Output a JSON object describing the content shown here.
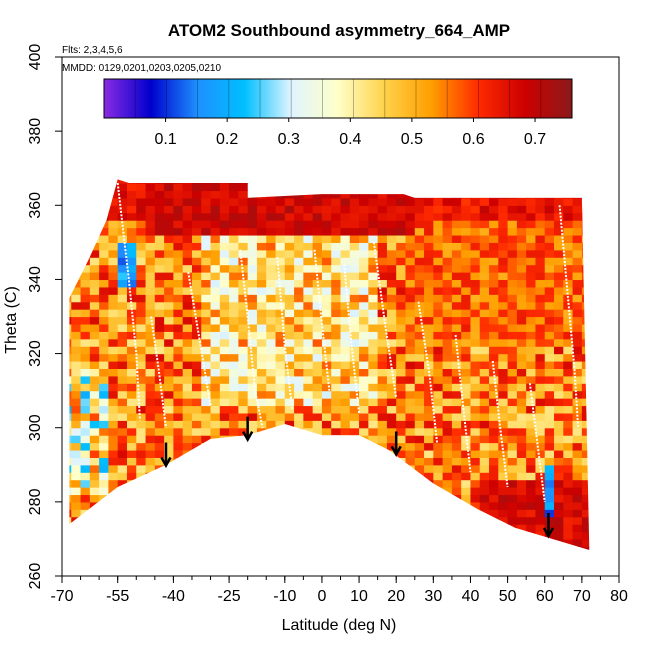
{
  "chart_data": {
    "type": "heatmap",
    "title": "ATOM2 Southbound asymmetry_664_AMP",
    "flights_label": "Flts: 2,3,4,5,6",
    "dates_label": "MMDD: 0129,0201,0203,0205,0210",
    "xlabel": "Latitude (deg N)",
    "ylabel": "Theta (C)",
    "xlim": [
      -70,
      80
    ],
    "ylim": [
      260,
      400
    ],
    "x_ticks": [
      -70,
      -55,
      -40,
      -25,
      -10,
      0,
      10,
      20,
      30,
      40,
      50,
      60,
      70,
      80
    ],
    "x_tick_labels": [
      "-70",
      "-55",
      "-40",
      "-25",
      "-10",
      "0",
      "10",
      "20",
      "30",
      "40",
      "50",
      "60",
      "70",
      "80"
    ],
    "y_ticks": [
      260,
      280,
      300,
      320,
      340,
      360,
      380,
      400
    ],
    "y_tick_labels": [
      "260",
      "280",
      "300",
      "320",
      "340",
      "360",
      "380",
      "400"
    ],
    "colorbar": {
      "range": [
        0.0,
        0.76
      ],
      "ticks": [
        0.1,
        0.2,
        0.3,
        0.4,
        0.5,
        0.6,
        0.7
      ],
      "tick_labels": [
        "0.1",
        "0.2",
        "0.3",
        "0.4",
        "0.5",
        "0.6",
        "0.7"
      ],
      "colors": [
        "#8a2be2",
        "#0000cd",
        "#1e90ff",
        "#00bfff",
        "#e0f4ff",
        "#ffffc8",
        "#ffd24a",
        "#ff9e00",
        "#ff2a00",
        "#cc0000",
        "#8b1a1a"
      ]
    },
    "lower_boundary": [
      [
        -68,
        274
      ],
      [
        -55,
        284
      ],
      [
        -42,
        290
      ],
      [
        -30,
        297
      ],
      [
        -20,
        298
      ],
      [
        -10,
        301
      ],
      [
        0,
        298
      ],
      [
        10,
        298
      ],
      [
        18,
        294
      ],
      [
        30,
        285
      ],
      [
        42,
        278
      ],
      [
        52,
        273
      ],
      [
        62,
        270
      ],
      [
        72,
        267
      ]
    ],
    "upper_boundary": [
      [
        -68,
        335
      ],
      [
        -63,
        345
      ],
      [
        -58,
        356
      ],
      [
        -55,
        367
      ],
      [
        -52,
        366
      ],
      [
        -52,
        366
      ],
      [
        -20,
        366
      ],
      [
        -20,
        362
      ],
      [
        0,
        363
      ],
      [
        22,
        363
      ],
      [
        25,
        362
      ],
      [
        70,
        362
      ]
    ],
    "arrows_x": [
      -42,
      -20,
      20,
      61
    ],
    "arrows_y": [
      296,
      303,
      299,
      277
    ],
    "white_curves": [
      [
        [
          -55,
          366
        ],
        [
          -52,
          340
        ],
        [
          -50,
          320
        ],
        [
          -49,
          302
        ]
      ],
      [
        [
          -46,
          330
        ],
        [
          -44,
          316
        ],
        [
          -42,
          300
        ]
      ],
      [
        [
          -36,
          342
        ],
        [
          -33,
          324
        ],
        [
          -30,
          306
        ]
      ],
      [
        [
          -22,
          348
        ],
        [
          -20,
          330
        ],
        [
          -18,
          310
        ],
        [
          -16,
          300
        ]
      ],
      [
        [
          -12,
          346
        ],
        [
          -10,
          322
        ],
        [
          -8,
          305
        ]
      ],
      [
        [
          -2,
          348
        ],
        [
          0,
          328
        ],
        [
          2,
          310
        ]
      ],
      [
        [
          6,
          344
        ],
        [
          8,
          322
        ],
        [
          10,
          304
        ]
      ],
      [
        [
          14,
          350
        ],
        [
          17,
          328
        ],
        [
          20,
          308
        ]
      ],
      [
        [
          26,
          334
        ],
        [
          29,
          314
        ],
        [
          31,
          296
        ]
      ],
      [
        [
          36,
          325
        ],
        [
          38,
          306
        ],
        [
          40,
          288
        ]
      ],
      [
        [
          46,
          318
        ],
        [
          48,
          300
        ],
        [
          50,
          284
        ]
      ],
      [
        [
          56,
          312
        ],
        [
          58,
          296
        ],
        [
          60,
          280
        ]
      ],
      [
        [
          64,
          360
        ],
        [
          66,
          338
        ],
        [
          68,
          316
        ],
        [
          69,
          300
        ]
      ]
    ]
  }
}
